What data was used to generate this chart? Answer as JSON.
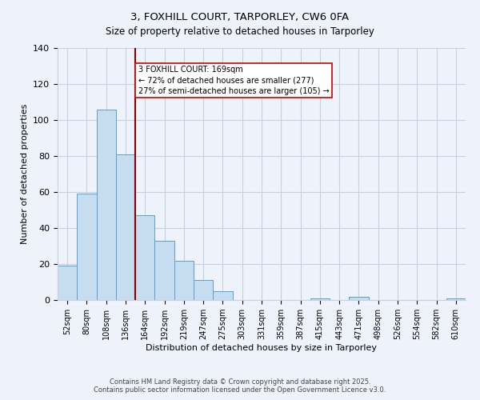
{
  "title": "3, FOXHILL COURT, TARPORLEY, CW6 0FA",
  "subtitle": "Size of property relative to detached houses in Tarporley",
  "xlabel": "Distribution of detached houses by size in Tarporley",
  "ylabel": "Number of detached properties",
  "bar_labels": [
    "52sqm",
    "80sqm",
    "108sqm",
    "136sqm",
    "164sqm",
    "192sqm",
    "219sqm",
    "247sqm",
    "275sqm",
    "303sqm",
    "331sqm",
    "359sqm",
    "387sqm",
    "415sqm",
    "443sqm",
    "471sqm",
    "498sqm",
    "526sqm",
    "554sqm",
    "582sqm",
    "610sqm"
  ],
  "bar_values": [
    19,
    59,
    106,
    81,
    47,
    33,
    22,
    11,
    5,
    0,
    0,
    0,
    0,
    1,
    0,
    2,
    0,
    0,
    0,
    0,
    1
  ],
  "bar_color": "#c6ddf0",
  "bar_edge_color": "#5a9fd4",
  "vline_color": "#8b0000",
  "annotation_text": "3 FOXHILL COURT: 169sqm\n← 72% of detached houses are smaller (277)\n27% of semi-detached houses are larger (105) →",
  "annotation_box_color": "#ffffff",
  "annotation_box_edge": "#cc0000",
  "ylim": [
    0,
    140
  ],
  "yticks": [
    0,
    20,
    40,
    60,
    80,
    100,
    120,
    140
  ],
  "background_color": "#eef2fb",
  "footer_line1": "Contains HM Land Registry data © Crown copyright and database right 2025.",
  "footer_line2": "Contains public sector information licensed under the Open Government Licence v3.0.",
  "grid_color": "#c8d0e0"
}
